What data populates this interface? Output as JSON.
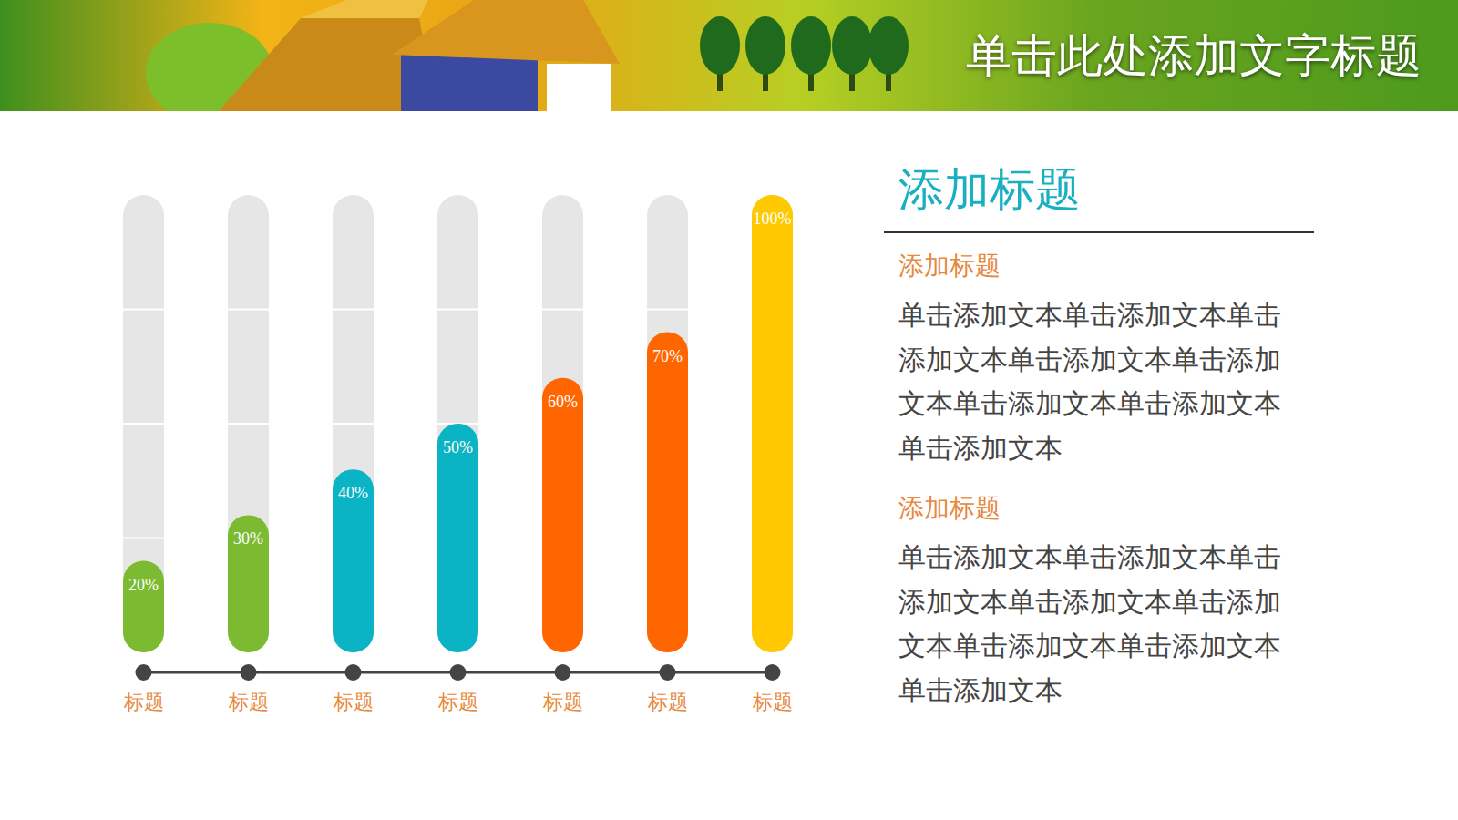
{
  "header": {
    "title": "单击此处添加文字标题"
  },
  "chart_data": {
    "type": "bar",
    "categories": [
      "标题",
      "标题",
      "标题",
      "标题",
      "标题",
      "标题",
      "标题"
    ],
    "values": [
      20,
      30,
      40,
      50,
      60,
      70,
      100
    ],
    "value_labels": [
      "20%",
      "30%",
      "40%",
      "50%",
      "60%",
      "70%",
      "100%"
    ],
    "colors": [
      "#7cbb31",
      "#7cbb31",
      "#0bb4c4",
      "#0bb4c4",
      "#ff6600",
      "#ff6600",
      "#ffc800"
    ],
    "ylim": [
      0,
      100
    ],
    "yticks": [
      0,
      25,
      50,
      75,
      100
    ],
    "grid": true,
    "data_labels": true,
    "tick_labels": "x"
  },
  "panel": {
    "title": "添加标题",
    "sections": [
      {
        "heading": "添加标题",
        "text": "单击添加文本单击添加文本单击添加文本单击添加文本单击添加文本单击添加文本单击添加文本单击添加文本"
      },
      {
        "heading": "添加标题",
        "text": "单击添加文本单击添加文本单击添加文本单击添加文本单击添加文本单击添加文本单击添加文本单击添加文本"
      }
    ]
  }
}
